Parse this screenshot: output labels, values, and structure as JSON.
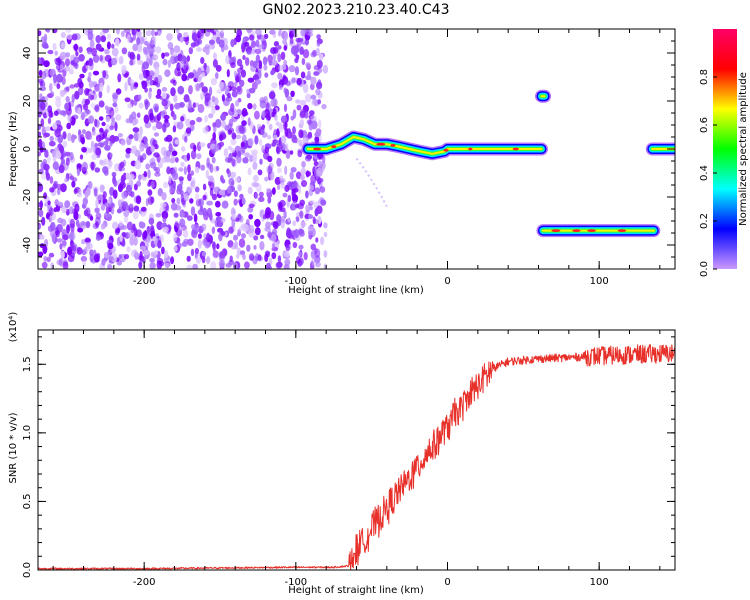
{
  "title": "GN02.2023.210.23.40.C43",
  "chart_data": [
    {
      "type": "heatmap",
      "xlabel": "Height of straight line (km)",
      "ylabel": "Frequency (Hz)",
      "xlim": [
        -270,
        150
      ],
      "ylim": [
        -50,
        50
      ],
      "xticks": [
        -200,
        -100,
        0,
        100
      ],
      "yticks": [
        -40,
        -20,
        0,
        20,
        40
      ],
      "noise_region_x": [
        -270,
        -83
      ],
      "traces": [
        {
          "x": [
            -92,
            -80,
            -70,
            -62,
            -55,
            -48,
            -40,
            -32,
            -25,
            -18,
            -10,
            -2,
            0,
            10,
            20,
            30,
            40,
            50,
            62
          ],
          "y": [
            0,
            0,
            2,
            5,
            4,
            2,
            2,
            1,
            0,
            -1,
            -2,
            -1,
            0,
            0,
            0,
            0,
            0,
            0,
            0
          ]
        },
        {
          "x": [
            62,
            64
          ],
          "y": [
            22,
            22
          ]
        },
        {
          "x": [
            63,
            80,
            90,
            100,
            110,
            120,
            136
          ],
          "y": [
            -34,
            -34,
            -34,
            -34,
            -34,
            -34,
            -34
          ]
        },
        {
          "x": [
            135,
            150
          ],
          "y": [
            0,
            0
          ]
        }
      ],
      "colorbar": {
        "label": "Normalized spectral amplitude",
        "ticks": [
          "0.0",
          "0.2",
          "0.4",
          "0.6",
          "0.8"
        ],
        "range": [
          0,
          1
        ],
        "colors": [
          "#cc99ff",
          "#0000ff",
          "#00ffff",
          "#00ff00",
          "#ffff00",
          "#ff0000",
          "#ff0066"
        ]
      }
    },
    {
      "type": "line",
      "xlabel": "Height of straight line (km)",
      "ylabel": "SNR (10 * v/v)",
      "multiplier": "(x10⁴)",
      "xlim": [
        -270,
        150
      ],
      "ylim": [
        0,
        1.75
      ],
      "xticks": [
        -200,
        -100,
        0,
        100
      ],
      "yticks": [
        0.0,
        0.5,
        1.0,
        1.5
      ],
      "ytick_labels": [
        "0.0",
        "0.5",
        "1.0",
        "1.5"
      ],
      "color": "#e8302a",
      "x": [
        -270,
        -200,
        -150,
        -100,
        -75,
        -65,
        -60,
        -50,
        -40,
        -30,
        -20,
        -10,
        0,
        10,
        20,
        30,
        40,
        60,
        80,
        100,
        120,
        150
      ],
      "y": [
        0.01,
        0.01,
        0.015,
        0.02,
        0.02,
        0.03,
        0.15,
        0.3,
        0.45,
        0.6,
        0.75,
        0.9,
        1.05,
        1.2,
        1.35,
        1.47,
        1.52,
        1.54,
        1.55,
        1.56,
        1.57,
        1.58
      ]
    }
  ]
}
